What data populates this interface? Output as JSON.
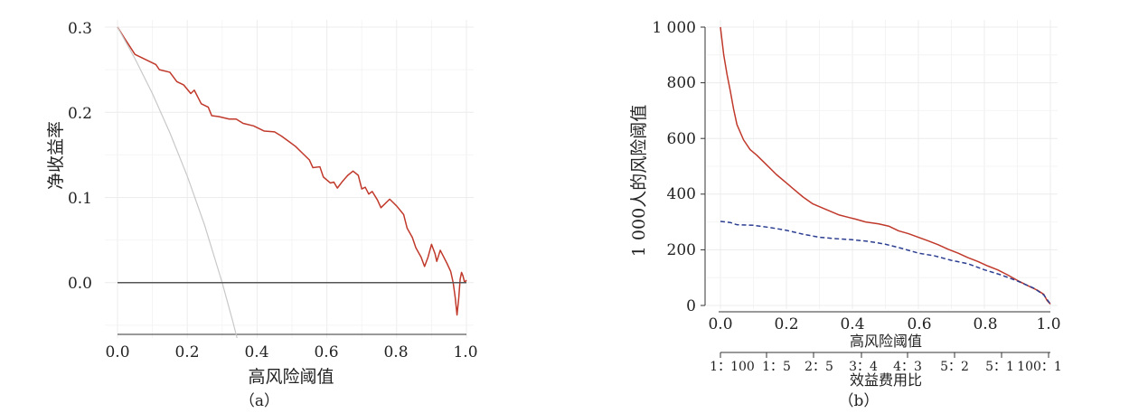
{
  "chart_data": [
    {
      "type": "line",
      "xlabel": "高风险阈值",
      "ylabel": "净收益率",
      "caption": "（a）",
      "xlim": [
        0,
        1
      ],
      "ylim": [
        -0.065,
        0.3
      ],
      "grid": true,
      "x_ticks": [
        "0.0",
        "0.2",
        "0.4",
        "0.6",
        "0.8",
        "1.0"
      ],
      "y_ticks": [
        "0.3",
        "0.2",
        "0.1",
        "0.0"
      ],
      "series": [
        {
          "color": "#c0392b",
          "points": [
            [
              0.0,
              0.3
            ],
            [
              0.02,
              0.287
            ],
            [
              0.05,
              0.268
            ],
            [
              0.08,
              0.262
            ],
            [
              0.11,
              0.256
            ],
            [
              0.12,
              0.25
            ],
            [
              0.15,
              0.247
            ],
            [
              0.17,
              0.236
            ],
            [
              0.19,
              0.232
            ],
            [
              0.21,
              0.222
            ],
            [
              0.22,
              0.226
            ],
            [
              0.24,
              0.21
            ],
            [
              0.26,
              0.206
            ],
            [
              0.27,
              0.196
            ],
            [
              0.29,
              0.195
            ],
            [
              0.32,
              0.192
            ],
            [
              0.34,
              0.192
            ],
            [
              0.36,
              0.187
            ],
            [
              0.39,
              0.184
            ],
            [
              0.42,
              0.178
            ],
            [
              0.45,
              0.177
            ],
            [
              0.47,
              0.172
            ],
            [
              0.49,
              0.166
            ],
            [
              0.51,
              0.16
            ],
            [
              0.53,
              0.152
            ],
            [
              0.55,
              0.144
            ],
            [
              0.56,
              0.135
            ],
            [
              0.58,
              0.136
            ],
            [
              0.59,
              0.124
            ],
            [
              0.61,
              0.117
            ],
            [
              0.62,
              0.118
            ],
            [
              0.63,
              0.111
            ],
            [
              0.645,
              0.119
            ],
            [
              0.66,
              0.126
            ],
            [
              0.675,
              0.131
            ],
            [
              0.69,
              0.126
            ],
            [
              0.7,
              0.11
            ],
            [
              0.71,
              0.112
            ],
            [
              0.72,
              0.104
            ],
            [
              0.73,
              0.107
            ],
            [
              0.745,
              0.097
            ],
            [
              0.755,
              0.088
            ],
            [
              0.765,
              0.092
            ],
            [
              0.78,
              0.098
            ],
            [
              0.79,
              0.094
            ],
            [
              0.8,
              0.09
            ],
            [
              0.82,
              0.08
            ],
            [
              0.83,
              0.064
            ],
            [
              0.845,
              0.053
            ],
            [
              0.855,
              0.041
            ],
            [
              0.87,
              0.03
            ],
            [
              0.88,
              0.019
            ],
            [
              0.89,
              0.03
            ],
            [
              0.9,
              0.045
            ],
            [
              0.91,
              0.034
            ],
            [
              0.915,
              0.025
            ],
            [
              0.925,
              0.038
            ],
            [
              0.935,
              0.03
            ],
            [
              0.945,
              0.022
            ],
            [
              0.955,
              0.013
            ],
            [
              0.962,
              0.0
            ],
            [
              0.968,
              -0.018
            ],
            [
              0.973,
              -0.038
            ],
            [
              0.978,
              -0.018
            ],
            [
              0.982,
              0.004
            ],
            [
              0.986,
              0.012
            ],
            [
              0.99,
              0.008
            ],
            [
              0.995,
              0.0
            ],
            [
              1.0,
              0.003
            ]
          ]
        },
        {
          "color": "#c8c8c8",
          "points": [
            [
              0.0,
              0.3
            ],
            [
              0.05,
              0.263
            ],
            [
              0.1,
              0.222
            ],
            [
              0.15,
              0.176
            ],
            [
              0.2,
              0.125
            ],
            [
              0.25,
              0.067
            ],
            [
              0.3,
              0.0
            ],
            [
              0.33,
              -0.045
            ],
            [
              0.35,
              -0.077
            ]
          ]
        },
        {
          "color": "#555555",
          "points": [
            [
              0.0,
              0.0
            ],
            [
              1.0,
              0.0
            ]
          ]
        }
      ]
    },
    {
      "type": "line",
      "xlabel": "高风险阈值",
      "ylabel": "1 000人的风险阈值",
      "caption": "（b）",
      "xlim": [
        0,
        1
      ],
      "ylim": [
        0,
        1000
      ],
      "grid": true,
      "x_ticks": [
        "0.0",
        "0.2",
        "0.4",
        "0.6",
        "0.8",
        "1.0"
      ],
      "y_ticks": [
        "1 000",
        "800",
        "600",
        "400",
        "200",
        "0"
      ],
      "secondary_axis": {
        "label": "效益费用比",
        "ticks": [
          "1：100",
          "1：5",
          "2：5",
          "3：4",
          "4：3",
          "5：2",
          "5：1",
          "100：1"
        ]
      },
      "series": [
        {
          "color": "#c0392b",
          "dash": "solid",
          "points": [
            [
              0.0,
              1000
            ],
            [
              0.01,
              900
            ],
            [
              0.02,
              830
            ],
            [
              0.03,
              770
            ],
            [
              0.04,
              705
            ],
            [
              0.05,
              650
            ],
            [
              0.07,
              595
            ],
            [
              0.09,
              560
            ],
            [
              0.11,
              540
            ],
            [
              0.14,
              505
            ],
            [
              0.17,
              470
            ],
            [
              0.2,
              440
            ],
            [
              0.22,
              420
            ],
            [
              0.25,
              390
            ],
            [
              0.28,
              365
            ],
            [
              0.3,
              355
            ],
            [
              0.33,
              340
            ],
            [
              0.36,
              325
            ],
            [
              0.39,
              316
            ],
            [
              0.41,
              310
            ],
            [
              0.44,
              300
            ],
            [
              0.48,
              293
            ],
            [
              0.51,
              285
            ],
            [
              0.54,
              268
            ],
            [
              0.57,
              258
            ],
            [
              0.6,
              245
            ],
            [
              0.63,
              232
            ],
            [
              0.66,
              218
            ],
            [
              0.69,
              202
            ],
            [
              0.72,
              188
            ],
            [
              0.75,
              172
            ],
            [
              0.78,
              158
            ],
            [
              0.81,
              142
            ],
            [
              0.84,
              128
            ],
            [
              0.87,
              110
            ],
            [
              0.9,
              90
            ],
            [
              0.93,
              72
            ],
            [
              0.96,
              55
            ],
            [
              0.98,
              40
            ],
            [
              0.99,
              18
            ],
            [
              1.0,
              5
            ]
          ]
        },
        {
          "color": "#2c3e91",
          "dash": "dashed",
          "points": [
            [
              0.0,
              302
            ],
            [
              0.03,
              298
            ],
            [
              0.05,
              290
            ],
            [
              0.1,
              288
            ],
            [
              0.15,
              280
            ],
            [
              0.2,
              270
            ],
            [
              0.25,
              256
            ],
            [
              0.3,
              245
            ],
            [
              0.35,
              240
            ],
            [
              0.4,
              236
            ],
            [
              0.45,
              230
            ],
            [
              0.5,
              220
            ],
            [
              0.55,
              205
            ],
            [
              0.6,
              188
            ],
            [
              0.65,
              178
            ],
            [
              0.7,
              162
            ],
            [
              0.75,
              150
            ],
            [
              0.8,
              128
            ],
            [
              0.85,
              110
            ],
            [
              0.9,
              88
            ],
            [
              0.95,
              62
            ],
            [
              0.98,
              38
            ],
            [
              1.0,
              5
            ]
          ]
        }
      ]
    }
  ]
}
